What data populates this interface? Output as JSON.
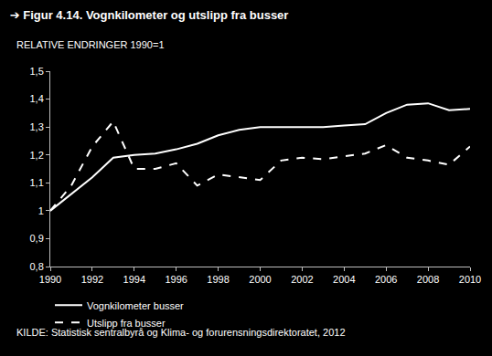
{
  "chart_data": {
    "type": "line",
    "title": "➔ Figur 4.14. Vognkilometer og utslipp fra busser",
    "subtitle": "RELATIVE ENDRINGER 1990=1",
    "source": "KILDE: Statistisk sentralbyrå og Klima- og forurensningsdirektoratet, 2012",
    "x": [
      1990,
      1991,
      1992,
      1993,
      1994,
      1995,
      1996,
      1997,
      1998,
      1999,
      2000,
      2001,
      2002,
      2003,
      2004,
      2005,
      2006,
      2007,
      2008,
      2009,
      2010
    ],
    "series": [
      {
        "name": "Vognkilometer busser",
        "color": "#ffffff",
        "line_style": "solid",
        "values": [
          1.0,
          1.06,
          1.12,
          1.19,
          1.2,
          1.205,
          1.22,
          1.24,
          1.27,
          1.29,
          1.3,
          1.3,
          1.3,
          1.3,
          1.305,
          1.31,
          1.35,
          1.38,
          1.385,
          1.36,
          1.365
        ]
      },
      {
        "name": "Utslipp fra busser",
        "color": "#ffffff",
        "line_style": "dash",
        "values": [
          1.0,
          1.09,
          1.23,
          1.32,
          1.15,
          1.15,
          1.17,
          1.09,
          1.13,
          1.12,
          1.11,
          1.18,
          1.19,
          1.185,
          1.195,
          1.205,
          1.235,
          1.19,
          1.18,
          1.165,
          1.23
        ]
      }
    ],
    "xlim": [
      1990,
      2010
    ],
    "xticks": [
      1990,
      1992,
      1994,
      1996,
      1998,
      2000,
      2002,
      2004,
      2006,
      2008,
      2010
    ],
    "ylim": [
      0.8,
      1.5
    ],
    "yticks": [
      {
        "value": 0.8,
        "label": "0,8"
      },
      {
        "value": 0.9,
        "label": "0,9"
      },
      1,
      {
        "value": 1.1,
        "label": "1,1"
      },
      {
        "value": 1.2,
        "label": "1,2"
      },
      {
        "value": 1.3,
        "label": "1,3"
      },
      {
        "value": 1.4,
        "label": "1,4"
      },
      {
        "value": 1.5,
        "label": "1,5"
      }
    ],
    "grid": false,
    "legend": "bottom"
  }
}
